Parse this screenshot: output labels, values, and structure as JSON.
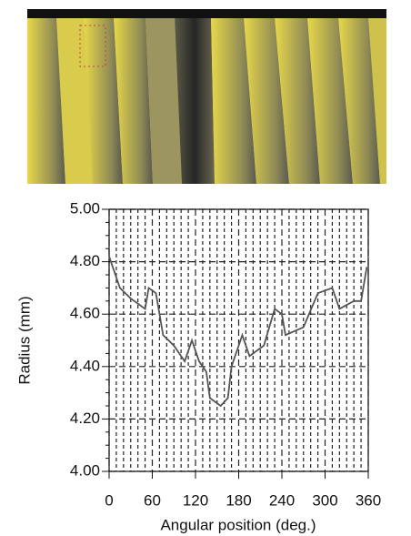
{
  "chart_data": {
    "type": "line",
    "x_label": "Angular position (deg.)",
    "y_label": "Radius (mm)",
    "x": [
      0,
      15,
      30,
      50,
      55,
      65,
      75,
      90,
      105,
      115,
      125,
      135,
      140,
      155,
      165,
      170,
      185,
      195,
      215,
      230,
      240,
      245,
      270,
      290,
      310,
      320,
      340,
      350,
      358
    ],
    "series": [
      {
        "color": "#555555",
        "values": [
          4.82,
          4.7,
          4.66,
          4.62,
          4.7,
          4.68,
          4.52,
          4.48,
          4.42,
          4.5,
          4.42,
          4.38,
          4.28,
          4.25,
          4.28,
          4.4,
          4.52,
          4.44,
          4.48,
          4.62,
          4.6,
          4.52,
          4.55,
          4.68,
          4.7,
          4.62,
          4.65,
          4.65,
          4.78
        ]
      }
    ],
    "xlim": [
      0,
      360
    ],
    "xticks": [
      0,
      60,
      120,
      180,
      240,
      300,
      360
    ],
    "ylim": [
      4,
      5
    ],
    "yticks": [
      {
        "value": 4,
        "label": "4.00"
      },
      {
        "value": 4.2,
        "label": "4.20"
      },
      {
        "value": 4.4,
        "label": "4.40"
      },
      {
        "value": 4.6,
        "label": "4.60"
      },
      {
        "value": 4.8,
        "label": "4.80"
      },
      {
        "value": 5,
        "label": "5.00"
      }
    ],
    "grid": true
  }
}
